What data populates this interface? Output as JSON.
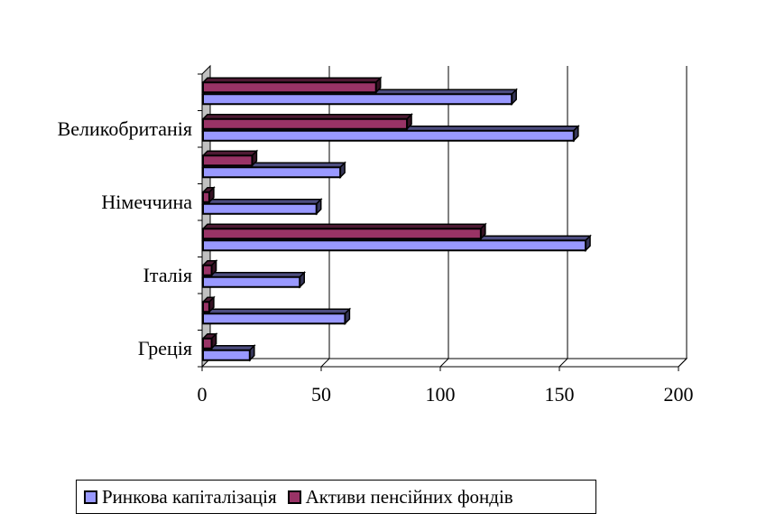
{
  "chart_data": {
    "type": "bar",
    "orientation": "horizontal",
    "categories": [
      "Греція",
      "",
      "Італія",
      "",
      "Німеччина",
      "",
      "Великобританія",
      ""
    ],
    "series": [
      {
        "name": "Ринкова капіталізація",
        "color": "#9999ff",
        "values": [
          20,
          60,
          41,
          161,
          48,
          58,
          156,
          130
        ]
      },
      {
        "name": "Активи пенсійних фондів",
        "color": "#993366",
        "values": [
          4,
          3,
          4,
          117,
          3,
          21,
          86,
          73
        ]
      }
    ],
    "xlim": [
      0,
      200
    ],
    "xticks": [
      "0",
      "50",
      "100",
      "150",
      "200"
    ],
    "grid": true,
    "three_d": true,
    "legend_position": "bottom"
  }
}
